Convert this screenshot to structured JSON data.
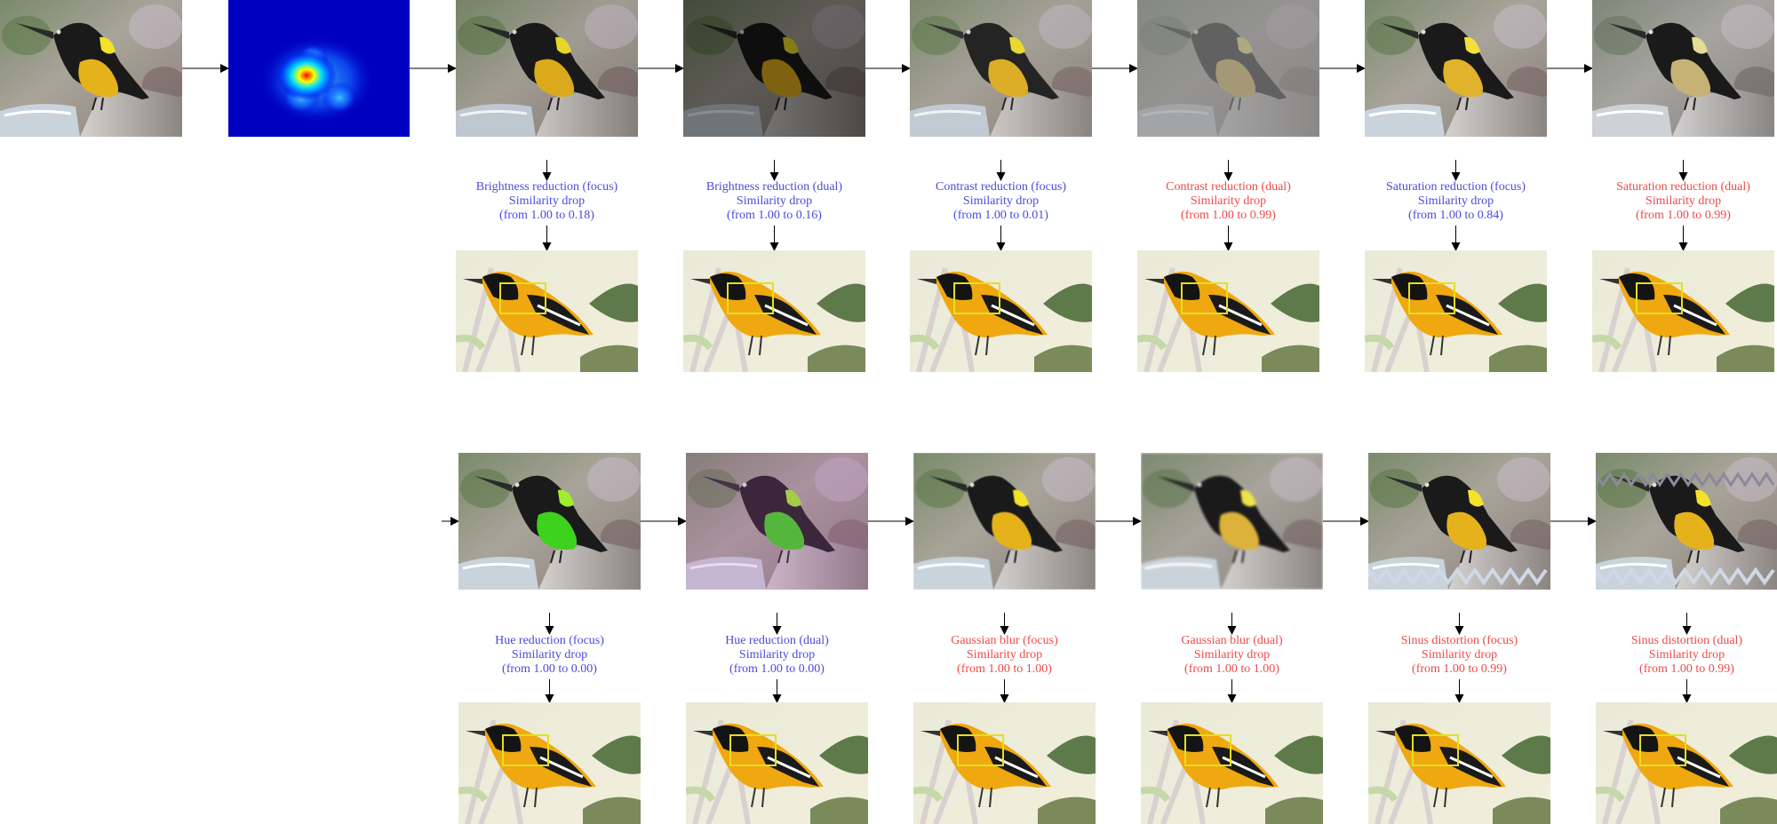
{
  "colors": {
    "positive": "#4b4bd9",
    "negative": "#ea4b4b",
    "arrow": "#000000",
    "box": "#e3e020"
  },
  "source": {
    "icon": "bird-photo"
  },
  "saliency": {
    "icon": "saliency-heatmap"
  },
  "row1": [
    {
      "title": "Brightness reduction (focus)",
      "line2": "Similarity drop",
      "line3": "(from 1.00 to 0.18)",
      "tone": "positive",
      "effect": "brightness-focus"
    },
    {
      "title": "Brightness reduction (dual)",
      "line2": "Similarity drop",
      "line3": "(from 1.00 to 0.16)",
      "tone": "positive",
      "effect": "brightness-dual"
    },
    {
      "title": "Contrast reduction (focus)",
      "line2": "Similarity drop",
      "line3": "(from 1.00 to 0.01)",
      "tone": "positive",
      "effect": "contrast-focus"
    },
    {
      "title": "Contrast reduction (dual)",
      "line2": "Similarity drop",
      "line3": "(from 1.00 to 0.99)",
      "tone": "negative",
      "effect": "contrast-dual"
    },
    {
      "title": "Saturation reduction (focus)",
      "line2": "Similarity drop",
      "line3": "(from 1.00 to 0.84)",
      "tone": "positive",
      "effect": "saturation-focus"
    },
    {
      "title": "Saturation reduction (dual)",
      "line2": "Similarity drop",
      "line3": "(from 1.00 to 0.99)",
      "tone": "negative",
      "effect": "saturation-dual"
    }
  ],
  "row2": [
    {
      "title": "Hue reduction (focus)",
      "line2": "Similarity drop",
      "line3": "(from 1.00 to 0.00)",
      "tone": "positive",
      "effect": "hue-focus"
    },
    {
      "title": "Hue reduction (dual)",
      "line2": "Similarity drop",
      "line3": "(from 1.00 to 0.00)",
      "tone": "positive",
      "effect": "hue-dual"
    },
    {
      "title": "Gaussian blur (focus)",
      "line2": "Similarity drop",
      "line3": "(from 1.00 to 1.00)",
      "tone": "negative",
      "effect": "blur-focus"
    },
    {
      "title": "Gaussian blur (dual)",
      "line2": "Similarity drop",
      "line3": "(from 1.00 to 1.00)",
      "tone": "negative",
      "effect": "blur-dual"
    },
    {
      "title": "Sinus distortion (focus)",
      "line2": "Similarity drop",
      "line3": "(from 1.00 to 0.99)",
      "tone": "negative",
      "effect": "sinus-focus"
    },
    {
      "title": "Sinus distortion (dual)",
      "line2": "Similarity drop",
      "line3": "(from 1.00 to 0.99)",
      "tone": "negative",
      "effect": "sinus-dual"
    }
  ]
}
